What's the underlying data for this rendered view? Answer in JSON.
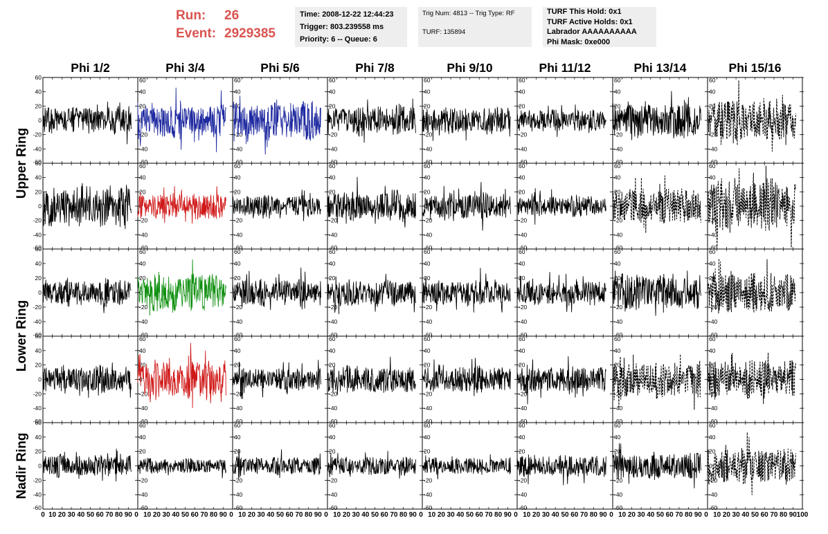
{
  "run_info": {
    "run_label": "Run:",
    "run_value": "26",
    "event_label": "Event:",
    "event_value": "2929385"
  },
  "time_box": {
    "time": "Time: 2008-12-22 12:44:23",
    "trigger": "Trigger: 803.239558 ms",
    "priority": "Priority: 6 -- Queue: 6"
  },
  "trig_box": {
    "trig": "Trig Num: 4813 -- Trig Type: RF",
    "turf": "TURF: 135894"
  },
  "turf_box": {
    "this_hold": "TURF This Hold: 0x1",
    "active_holds": "TURF Active Holds: 0x1",
    "labrador": "Labrador AAAAAAAAAA",
    "phi_mask": "Phi Mask: 0xe000"
  },
  "colors": {
    "run_info": "#d9534f",
    "trace_default": "#000000",
    "trace_blue": "#1f2aa0",
    "trace_red": "#d01818",
    "trace_green": "#109010",
    "info_box_bg": "#eeeeee"
  },
  "chart_data": {
    "type": "line",
    "description_grid": "5 rows by 8 columns of waveform panels",
    "columns": [
      "Phi 1/2",
      "Phi 3/4",
      "Phi 5/6",
      "Phi 7/8",
      "Phi 9/10",
      "Phi 11/12",
      "Phi 13/14",
      "Phi 15/16"
    ],
    "ring_labels": [
      "Upper Ring",
      "Lower Ring",
      "Nadir Ring"
    ],
    "ring_row_spans": [
      [
        0,
        1
      ],
      [
        2,
        3
      ],
      [
        4,
        4
      ]
    ],
    "xlim": [
      0,
      100
    ],
    "ylim": [
      -60,
      60
    ],
    "x_ticks": [
      0,
      10,
      20,
      30,
      40,
      50,
      60,
      70,
      80,
      90,
      100
    ],
    "x_tick_labels": [
      "0",
      "10",
      "20",
      "30",
      "40",
      "50",
      "60",
      "70",
      "80",
      "90",
      "100"
    ],
    "x_tick_labels_panel": [
      "10",
      "20",
      "30",
      "40",
      "50",
      "60",
      "70",
      "80",
      "90"
    ],
    "y_ticks": [
      -60,
      -40,
      -20,
      0,
      20,
      40,
      60
    ],
    "y_tick_labels": [
      "-60",
      "-40",
      "-20",
      "0",
      "20",
      "40",
      "60"
    ],
    "waveform_x_range": [
      0,
      93
    ],
    "highlighted_panels": [
      {
        "row": 0,
        "col": 1,
        "color": "blue"
      },
      {
        "row": 0,
        "col": 2,
        "color": "blue"
      },
      {
        "row": 1,
        "col": 1,
        "color": "red"
      },
      {
        "row": 2,
        "col": 1,
        "color": "green"
      },
      {
        "row": 3,
        "col": 1,
        "color": "red"
      }
    ],
    "dashed_panels": [
      {
        "row": 0,
        "col": 7
      },
      {
        "row": 1,
        "col": 6
      },
      {
        "row": 1,
        "col": 7
      },
      {
        "row": 2,
        "col": 7
      },
      {
        "row": 3,
        "col": 6
      },
      {
        "row": 3,
        "col": 7
      },
      {
        "row": 4,
        "col": 7
      }
    ],
    "panel_amplitudes": [
      [
        15,
        20,
        22,
        17,
        15,
        12,
        22,
        25
      ],
      [
        25,
        15,
        12,
        17,
        15,
        12,
        20,
        30
      ],
      [
        15,
        22,
        15,
        15,
        14,
        14,
        20,
        22
      ],
      [
        15,
        22,
        12,
        15,
        15,
        15,
        20,
        22
      ],
      [
        12,
        8,
        10,
        10,
        9,
        12,
        15,
        20
      ]
    ]
  }
}
